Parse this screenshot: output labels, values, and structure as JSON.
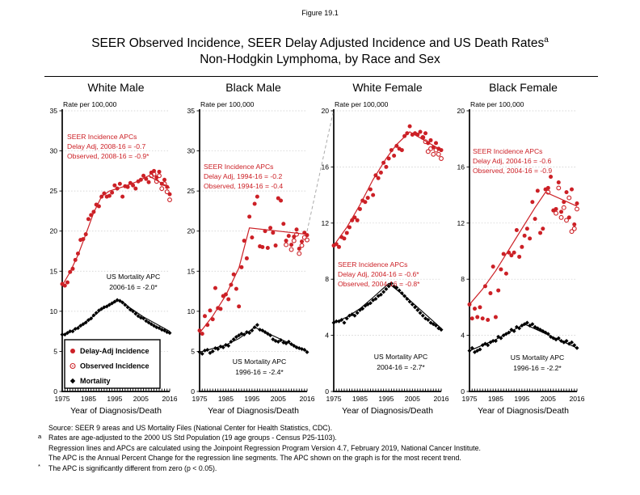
{
  "figure_label": "Figure 19.1",
  "title_line1": "SEER Observed Incidence, SEER Delay Adjusted Incidence and US Death Rates",
  "title_superscript": "a",
  "title_line2": "Non-Hodgkin Lymphoma, by Race and Sex",
  "colors": {
    "incidence": "#cc2026",
    "mortality": "#000000",
    "grid": "#c9c9c9",
    "connector": "#ababab"
  },
  "legend": {
    "items": [
      {
        "label": "Delay-Adj Incidence",
        "marker": "filled-circle"
      },
      {
        "label": "Observed Incidence",
        "marker": "open-circle"
      },
      {
        "label": "Mortality",
        "marker": "diamond"
      }
    ]
  },
  "footnotes": [
    {
      "marker": "",
      "text": "Source: SEER 9 areas and US Mortality Files (National Center for Health Statistics, CDC)."
    },
    {
      "marker": "a",
      "text": "Rates are age-adjusted to the 2000 US Std Population (19 age groups - Census P25-1103)."
    },
    {
      "marker": "",
      "text": "Regression lines and APCs are calculated using the Joinpoint Regression Program Version 4.7, February 2019, National Cancer Institute."
    },
    {
      "marker": "",
      "text": "The APC is the Annual Percent Change for the regression line segments. The APC shown on the graph is for the most recent trend."
    },
    {
      "marker": "*",
      "text": "The APC is significantly different from zero (p < 0.05)."
    }
  ],
  "chart_meta": {
    "type": "scatter",
    "x_axis_label": "Year of Diagnosis/Death",
    "y_axis_label": "Rate per 100,000",
    "xlim": [
      1975,
      2016
    ],
    "xticks": [
      1975,
      1985,
      1995,
      2005,
      2016
    ],
    "grid": "dotted-horizontal",
    "years": [
      1975,
      1976,
      1977,
      1978,
      1979,
      1980,
      1981,
      1982,
      1983,
      1984,
      1985,
      1986,
      1987,
      1988,
      1989,
      1990,
      1991,
      1992,
      1993,
      1994,
      1995,
      1996,
      1997,
      1998,
      1999,
      2000,
      2001,
      2002,
      2003,
      2004,
      2005,
      2006,
      2007,
      2008,
      2009,
      2010,
      2011,
      2012,
      2013,
      2014,
      2015,
      2016
    ]
  },
  "chart_data": [
    {
      "title": "White Male",
      "ylim": [
        0,
        35
      ],
      "ytick_step": 5,
      "incidence_apc_note": [
        "SEER Incidence APCs",
        "Delay Adj, 2008-16 = -0.7",
        "Observed, 2008-16 = -0.9*"
      ],
      "mortality_apc_note": [
        "US Mortality APC",
        "2006-16 = -2.0*"
      ],
      "series": [
        {
          "name": "Delay-Adj Incidence",
          "type": "scatter-filled",
          "values": [
            13.4,
            13.2,
            13.6,
            14.9,
            15.3,
            16.4,
            17.2,
            18.9,
            19.0,
            19.6,
            21.5,
            22.0,
            22.4,
            23.3,
            23.1,
            24.3,
            24.7,
            24.3,
            24.4,
            24.8,
            25.7,
            25.3,
            25.9,
            24.3,
            25.6,
            25.5,
            26.0,
            25.7,
            25.3,
            26.2,
            26.4,
            26.9,
            26.5,
            26.1,
            27.3,
            27.5,
            26.7,
            27.4,
            25.9,
            26.4,
            25.5,
            24.6
          ]
        },
        {
          "name": "Observed Incidence",
          "type": "scatter-open",
          "points": [
            [
              2009,
              26.9
            ],
            [
              2010,
              27.1
            ],
            [
              2011,
              26.2
            ],
            [
              2012,
              26.9
            ],
            [
              2013,
              25.3
            ],
            [
              2014,
              25.9
            ],
            [
              2015,
              24.9
            ],
            [
              2016,
              23.9
            ]
          ]
        },
        {
          "name": "Mortality",
          "type": "scatter-diamond",
          "values": [
            7.1,
            7.1,
            7.3,
            7.5,
            7.5,
            7.8,
            7.9,
            8.2,
            8.4,
            8.6,
            8.9,
            9.1,
            9.5,
            9.8,
            10.1,
            10.3,
            10.5,
            10.6,
            10.8,
            11.0,
            11.2,
            11.4,
            11.3,
            11.1,
            10.8,
            10.5,
            10.2,
            10.0,
            9.7,
            9.4,
            9.2,
            9.1,
            8.8,
            8.6,
            8.4,
            8.2,
            8.0,
            7.9,
            7.7,
            7.6,
            7.4,
            7.3
          ]
        }
      ],
      "trend_incidence": [
        [
          1975,
          13.2
        ],
        [
          1978,
          14.9
        ],
        [
          1981,
          17.0
        ],
        [
          1984,
          19.6
        ],
        [
          1987,
          22.3
        ],
        [
          1990,
          24.3
        ],
        [
          1993,
          25.0
        ],
        [
          1998,
          25.5
        ],
        [
          2003,
          26.1
        ],
        [
          2008,
          26.9
        ],
        [
          2016,
          25.4
        ]
      ],
      "trend_mortality": [
        [
          1975,
          7.0
        ],
        [
          1980,
          7.8
        ],
        [
          1985,
          8.9
        ],
        [
          1990,
          10.2
        ],
        [
          1994,
          11.0
        ],
        [
          1997,
          11.4
        ],
        [
          2001,
          10.4
        ],
        [
          2006,
          9.3
        ],
        [
          2016,
          7.5
        ]
      ]
    },
    {
      "title": "Black Male",
      "ylim": [
        0,
        35
      ],
      "ytick_step": 5,
      "incidence_apc_note": [
        "SEER Incidence APCs",
        "Delay Adj, 1994-16 = -0.2",
        "Observed, 1994-16 = -0.4"
      ],
      "mortality_apc_note": [
        "US Mortality APC",
        "1996-16 = -2.4*"
      ],
      "series": [
        {
          "name": "Delay-Adj Incidence",
          "type": "scatter-filled",
          "values": [
            7.6,
            7.2,
            9.4,
            8.3,
            10.1,
            9.0,
            12.9,
            10.4,
            10.3,
            11.9,
            12.1,
            11.5,
            13.3,
            14.6,
            12.8,
            10.6,
            15.5,
            18.8,
            16.6,
            21.8,
            19.2,
            23.4,
            24.3,
            18.1,
            18.0,
            20.0,
            17.9,
            20.4,
            19.8,
            18.2,
            24.1,
            23.8,
            20.9,
            18.8,
            19.4,
            18.3,
            19.3,
            20.2,
            17.8,
            18.7,
            19.8,
            19.5
          ]
        },
        {
          "name": "Observed Incidence",
          "type": "scatter-open",
          "points": [
            [
              2008,
              18.3
            ],
            [
              2010,
              17.7
            ],
            [
              2011,
              18.8
            ],
            [
              2012,
              19.6
            ],
            [
              2013,
              17.2
            ],
            [
              2014,
              18.2
            ],
            [
              2015,
              19.2
            ],
            [
              2016,
              18.9
            ]
          ]
        },
        {
          "name": "Mortality",
          "type": "scatter-diamond",
          "values": [
            4.9,
            4.7,
            5.1,
            5.2,
            4.8,
            5.0,
            5.4,
            5.3,
            5.6,
            5.5,
            5.8,
            5.7,
            6.2,
            6.5,
            6.8,
            7.0,
            7.2,
            7.1,
            7.4,
            7.3,
            7.6,
            8.0,
            8.3,
            7.7,
            7.6,
            7.4,
            7.2,
            7.0,
            6.5,
            6.3,
            6.2,
            6.4,
            6.1,
            6.0,
            6.2,
            5.9,
            5.7,
            5.5,
            5.4,
            5.3,
            5.2,
            4.9
          ]
        }
      ],
      "trend_incidence": [
        [
          1975,
          7.3
        ],
        [
          1980,
          9.4
        ],
        [
          1985,
          12.0
        ],
        [
          1990,
          15.4
        ],
        [
          1994,
          20.4
        ],
        [
          2016,
          19.6
        ]
      ],
      "trend_mortality": [
        [
          1975,
          4.9
        ],
        [
          1985,
          5.8
        ],
        [
          1990,
          6.6
        ],
        [
          1996,
          8.0
        ],
        [
          2016,
          5.0
        ]
      ]
    },
    {
      "title": "White Female",
      "ylim": [
        0,
        20
      ],
      "ytick_step": 4,
      "incidence_apc_note": [
        "SEER Incidence APCs",
        "Delay Adj, 2004-16 = -0.6*",
        "Observed, 2004-16 = -0.8*"
      ],
      "mortality_apc_note": [
        "US Mortality APC",
        "2004-16 = -2.7*"
      ],
      "series": [
        {
          "name": "Delay-Adj Incidence",
          "type": "scatter-filled",
          "values": [
            10.4,
            10.5,
            10.3,
            11.0,
            10.9,
            11.3,
            11.7,
            12.2,
            12.4,
            12.2,
            13.0,
            13.6,
            13.5,
            13.8,
            14.4,
            14.0,
            15.4,
            15.2,
            15.6,
            16.3,
            16.0,
            16.6,
            17.2,
            16.8,
            17.5,
            17.3,
            17.2,
            18.2,
            18.4,
            18.9,
            18.3,
            18.4,
            18.3,
            18.5,
            18.1,
            18.4,
            17.7,
            17.9,
            17.4,
            17.7,
            17.3,
            17.2
          ]
        },
        {
          "name": "Observed Incidence",
          "type": "scatter-open",
          "points": [
            [
              2009,
              18.1
            ],
            [
              2010,
              17.8
            ],
            [
              2011,
              17.1
            ],
            [
              2012,
              17.3
            ],
            [
              2013,
              16.9
            ],
            [
              2014,
              17.2
            ],
            [
              2015,
              16.9
            ],
            [
              2016,
              16.6
            ]
          ]
        },
        {
          "name": "Mortality",
          "type": "scatter-diamond",
          "values": [
            4.9,
            5.0,
            5.0,
            5.1,
            4.9,
            5.2,
            5.4,
            5.5,
            5.4,
            5.6,
            5.8,
            5.9,
            6.1,
            6.2,
            6.3,
            6.5,
            6.6,
            6.8,
            6.9,
            7.1,
            7.3,
            7.5,
            7.7,
            7.5,
            7.4,
            7.2,
            7.0,
            6.8,
            6.6,
            6.4,
            6.2,
            6.0,
            5.8,
            5.6,
            5.4,
            5.2,
            5.1,
            4.9,
            4.8,
            4.7,
            4.5,
            4.4
          ]
        }
      ],
      "trend_incidence": [
        [
          1975,
          10.4
        ],
        [
          1980,
          11.7
        ],
        [
          1985,
          13.3
        ],
        [
          1990,
          15.1
        ],
        [
          1995,
          16.6
        ],
        [
          1999,
          17.6
        ],
        [
          2004,
          18.5
        ],
        [
          2016,
          17.2
        ]
      ],
      "trend_mortality": [
        [
          1975,
          4.9
        ],
        [
          1980,
          5.3
        ],
        [
          1985,
          5.9
        ],
        [
          1990,
          6.7
        ],
        [
          1996,
          7.7
        ],
        [
          2004,
          6.5
        ],
        [
          2016,
          4.5
        ]
      ]
    },
    {
      "title": "Black Female",
      "ylim": [
        0,
        20
      ],
      "ytick_step": 4,
      "incidence_apc_note": [
        "SEER Incidence APCs",
        "Delay Adj, 2004-16 = -0.6",
        "Observed, 2004-16 = -0.9"
      ],
      "mortality_apc_note": [
        "US Mortality APC",
        "1996-16 = -2.2*"
      ],
      "series": [
        {
          "name": "Delay-Adj Incidence",
          "type": "scatter-filled",
          "values": [
            6.2,
            5.2,
            5.9,
            5.3,
            6.0,
            5.2,
            7.5,
            5.1,
            7.0,
            8.9,
            5.3,
            7.2,
            8.7,
            9.8,
            8.4,
            9.9,
            9.7,
            9.9,
            11.5,
            9.6,
            10.3,
            11.1,
            11.6,
            10.9,
            13.5,
            12.3,
            14.3,
            11.3,
            11.6,
            14.4,
            14.5,
            15.3,
            12.9,
            13.0,
            14.9,
            12.8,
            13.5,
            14.2,
            12.4,
            14.4,
            11.9,
            13.4
          ]
        },
        {
          "name": "Observed Incidence",
          "type": "scatter-open",
          "points": [
            [
              2005,
              14.2
            ],
            [
              2008,
              12.7
            ],
            [
              2009,
              14.5
            ],
            [
              2010,
              12.4
            ],
            [
              2011,
              13.1
            ],
            [
              2012,
              12.2
            ],
            [
              2013,
              13.8
            ],
            [
              2014,
              11.4
            ],
            [
              2015,
              11.6
            ],
            [
              2016,
              13.0
            ]
          ]
        },
        {
          "name": "Mortality",
          "type": "scatter-diamond",
          "values": [
            2.9,
            3.1,
            2.8,
            2.9,
            3.0,
            3.3,
            3.4,
            3.3,
            3.5,
            3.6,
            3.6,
            3.9,
            3.8,
            4.0,
            4.1,
            4.2,
            4.4,
            4.3,
            4.6,
            4.5,
            4.7,
            4.8,
            4.9,
            4.7,
            4.8,
            4.6,
            4.5,
            4.4,
            4.3,
            4.2,
            4.1,
            3.9,
            3.8,
            3.7,
            3.8,
            3.6,
            3.5,
            3.6,
            3.4,
            3.5,
            3.3,
            3.1
          ]
        }
      ],
      "trend_incidence": [
        [
          1975,
          6.2
        ],
        [
          1980,
          7.3
        ],
        [
          1985,
          8.6
        ],
        [
          1990,
          10.1
        ],
        [
          1995,
          11.6
        ],
        [
          2000,
          13.1
        ],
        [
          2004,
          14.2
        ],
        [
          2016,
          13.2
        ]
      ],
      "trend_mortality": [
        [
          1975,
          2.9
        ],
        [
          1985,
          3.7
        ],
        [
          1990,
          4.2
        ],
        [
          1996,
          4.8
        ],
        [
          2016,
          3.1
        ]
      ]
    }
  ]
}
